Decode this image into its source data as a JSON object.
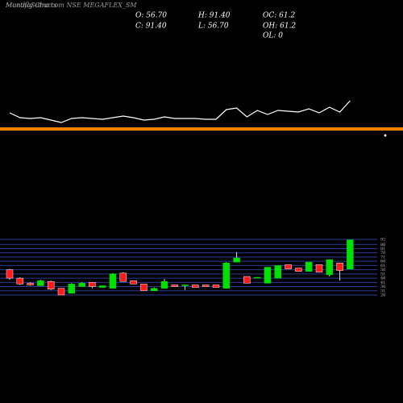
{
  "chart_data": {
    "type": "candlestick",
    "title": "MunafaSutra.com NSE MEGAFLEX_SM",
    "subtitle": "Monthly Charts",
    "summary": [
      "O: 56.70",
      "C: 91.40",
      "H: 91.40",
      "L: 56.70",
      "OC: 61.2",
      "OH: 61.2",
      "OL: 0"
    ],
    "open": [
      56,
      46,
      40,
      37,
      42,
      34,
      28,
      36,
      41,
      35,
      34,
      52,
      43,
      39,
      31,
      34,
      38,
      37,
      38,
      38,
      38,
      34,
      65,
      48,
      47,
      40,
      46,
      62,
      58,
      54,
      62,
      50,
      64,
      56.7
    ],
    "high": [
      57,
      47,
      41,
      44,
      43,
      34,
      40,
      41,
      41,
      37,
      52,
      53,
      43,
      39,
      35,
      45,
      38,
      38,
      38,
      38,
      38,
      65,
      77,
      48,
      47,
      59,
      61,
      62,
      58,
      65,
      62,
      68,
      64,
      91.4
    ],
    "low": [
      44,
      38,
      37,
      37,
      32,
      26,
      28,
      36,
      34,
      35,
      34,
      42,
      39,
      31,
      31,
      34,
      36,
      32,
      35,
      36,
      35,
      34,
      65,
      40,
      47,
      40,
      46,
      57,
      54,
      54,
      53,
      48,
      43,
      56.7
    ],
    "close": [
      46,
      39,
      38,
      43,
      33,
      26,
      39,
      40,
      36,
      37,
      51,
      42,
      39,
      31,
      34,
      42,
      36,
      38,
      35,
      36,
      35,
      64,
      70,
      40,
      47,
      59,
      61,
      57,
      54,
      65,
      53,
      68,
      55,
      91.4
    ],
    "up_color": "#00e000",
    "down_color": "#ff1a1a",
    "ylim": [
      26,
      92
    ],
    "yticks": [
      92,
      86,
      81,
      76,
      71,
      66,
      61,
      56,
      51,
      46,
      41,
      36,
      31,
      26
    ],
    "grid": true,
    "volume": {
      "values": [
        20,
        14,
        13,
        14,
        11,
        8,
        13,
        14,
        13,
        12,
        14,
        16,
        14,
        11,
        12,
        15,
        13,
        13,
        13,
        12,
        12,
        24,
        26,
        15,
        23,
        18,
        23,
        22,
        21,
        25,
        20,
        27,
        21,
        35
      ],
      "ylim": [
        0,
        40
      ],
      "color": "#ffffff"
    }
  }
}
